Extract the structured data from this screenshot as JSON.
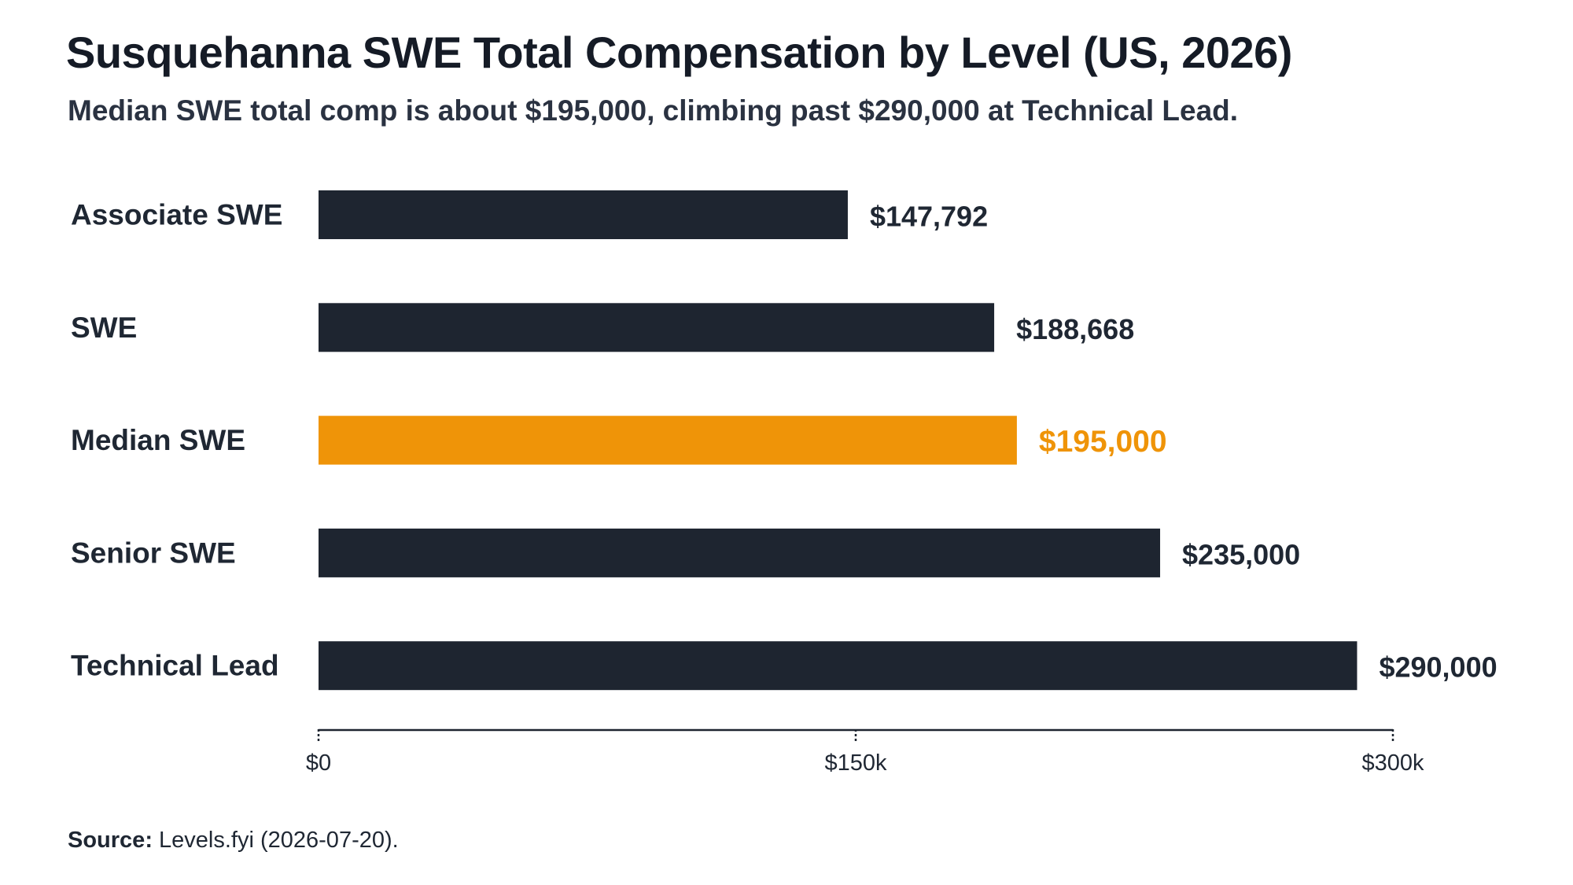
{
  "title": "Susquehanna SWE Total Compensation by Level (US, 2026)",
  "subtitle": "Median SWE  total comp is about $195,000, climbing past $290,000 at Technical Lead.",
  "source": {
    "label": "Source:",
    "text": " Levels.fyi (2026-07-20)."
  },
  "colors": {
    "bar": "#1e2530",
    "highlight": "#ef9408",
    "axis": "#1e2530",
    "text": "#1f2733"
  },
  "chart_data": {
    "type": "bar",
    "orientation": "horizontal",
    "categories": [
      "Associate SWE",
      "SWE",
      "Median SWE",
      "Senior SWE",
      "Technical Lead"
    ],
    "values": [
      147792,
      188668,
      195000,
      235000,
      290000
    ],
    "value_labels": [
      "$147,792",
      "$188,668",
      "$195,000",
      "$235,000",
      "$290,000"
    ],
    "highlight": [
      "Median SWE"
    ],
    "xlim": [
      0,
      300000
    ],
    "x_ticks": [
      0,
      150000,
      300000
    ],
    "x_tick_labels": [
      "$0",
      "$150k",
      "$300k"
    ],
    "grid": false,
    "legend": "none"
  }
}
